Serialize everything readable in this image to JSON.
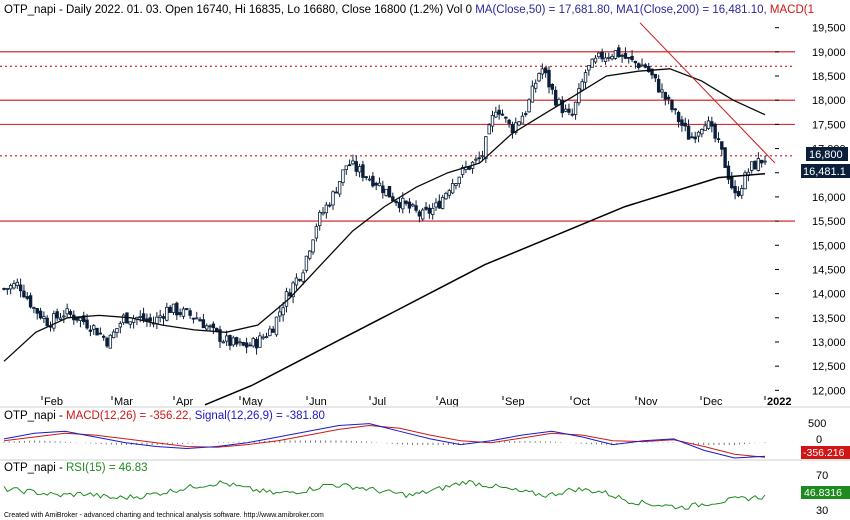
{
  "colors": {
    "background": "#ffffff",
    "candle": "#0b1f3a",
    "ma50": "#0a0a0a",
    "ma200": "#000000",
    "hline": "#d11414",
    "trendline": "#d11414",
    "macd": "#1a1acc",
    "signal": "#cc1a1a",
    "rsi": "#1f8a1f",
    "separator": "#cfcfcf",
    "axis_text": "#000000",
    "badge_last": "#0b1f3a",
    "badge_ma": "#0b1f3a",
    "badge_macd": "#d11414",
    "badge_rsi": "#1f8a1f"
  },
  "main": {
    "header": {
      "prefix": "OTP_napi - Daily 2022. 01. 03. Open 16740, Hi 16835, Lo 16680, Close 16800 (1.2%) Vol 0 ",
      "ma_part": "MA(Close,50) = 17,681.80, MA1(Close,200) = 16,481.10, ",
      "macd_part": "MACD(1"
    },
    "y_ticks": [
      "19,500",
      "19,000",
      "18,500",
      "18,000",
      "17,500",
      "17,000",
      "16,500",
      "16,000",
      "15,500",
      "15,000",
      "14,500",
      "14,000",
      "13,500",
      "13,000",
      "12,500",
      "12,000"
    ],
    "x_labels": [
      "Feb",
      "Mar",
      "Apr",
      "May",
      "Jun",
      "Jul",
      "Aug",
      "Sep",
      "Oct",
      "Nov",
      "Dec",
      "2022"
    ],
    "badge_last": "16,800",
    "badge_ma": "16,481.1"
  },
  "macd_panel": {
    "title_prefix": "OTP_napi - ",
    "title_macd": "MACD(12,26) = -356.22, ",
    "title_signal": "Signal(12,26,9) = -381.80",
    "y_ticks": [
      "500",
      "0"
    ],
    "badge": "-356.216"
  },
  "rsi_panel": {
    "title_prefix": "OTP_napi - ",
    "title_rsi": "RSI(15) = 46.83",
    "y_ticks": [
      "70",
      "30"
    ],
    "badge": "46.8316"
  },
  "footer": "Created with AmiBroker - advanced charting and technical analysis software. http://www.amibroker.com",
  "chart_data": [
    {
      "type": "candlestick",
      "title": "OTP_napi - Daily",
      "ylim": [
        11800,
        19700
      ],
      "x": [
        "Feb",
        "Mar",
        "Apr",
        "May",
        "Jun",
        "Jul",
        "Aug",
        "Sep",
        "Oct",
        "Nov",
        "Dec",
        "2022"
      ],
      "last_bar": {
        "date": "2022. 01. 03.",
        "open": 16740,
        "high": 16835,
        "low": 16680,
        "close": 16800,
        "change_pct": 1.2
      },
      "close_path": [
        14100,
        14200,
        13700,
        13400,
        13600,
        13500,
        13300,
        13000,
        13500,
        13500,
        13400,
        13700,
        13600,
        13500,
        13200,
        13000,
        12900,
        13000,
        13300,
        14000,
        14500,
        15500,
        16000,
        16700,
        16500,
        16300,
        16000,
        15800,
        15600,
        15800,
        16300,
        16600,
        16800,
        17900,
        17400,
        17800,
        18700,
        18000,
        17600,
        18600,
        18900,
        19000,
        18800,
        18700,
        18200,
        17700,
        17200,
        17600,
        17000,
        16000,
        16600,
        16800
      ],
      "ma50_path": [
        12600,
        13200,
        13500,
        13550,
        13500,
        13350,
        13250,
        13200,
        13350,
        13900,
        14600,
        15300,
        15800,
        16200,
        16500,
        16700,
        17300,
        17700,
        18100,
        18500,
        18600,
        18650,
        18400,
        18000,
        17700
      ],
      "ma200_path": [
        11700,
        12100,
        12600,
        13100,
        13600,
        14100,
        14600,
        15000,
        15400,
        15800,
        16100,
        16400,
        16481
      ],
      "horizontal_levels": [
        19000,
        18700,
        18000,
        17500,
        16850,
        15500
      ],
      "trendline": [
        19600,
        16700
      ],
      "ma50_last": 17681.8,
      "ma200_last": 16481.1
    },
    {
      "type": "line",
      "title": "MACD(12,26)",
      "ylim": [
        -400,
        700
      ],
      "series": [
        {
          "name": "MACD(12,26)",
          "last": -356.22,
          "values": [
            100,
            250,
            300,
            150,
            0,
            -100,
            -150,
            -100,
            0,
            150,
            300,
            450,
            500,
            300,
            100,
            -50,
            50,
            200,
            300,
            150,
            -50,
            50,
            100,
            -200,
            -400,
            -356
          ]
        },
        {
          "name": "Signal(12,26,9)",
          "last": -381.8,
          "values": [
            50,
            150,
            250,
            200,
            100,
            0,
            -100,
            -120,
            -50,
            50,
            200,
            350,
            450,
            380,
            200,
            50,
            0,
            120,
            250,
            200,
            50,
            30,
            80,
            -100,
            -300,
            -382
          ]
        }
      ]
    },
    {
      "type": "line",
      "title": "RSI(15)",
      "ylim": [
        30,
        80
      ],
      "series": [
        {
          "name": "RSI(15)",
          "last": 46.83,
          "values": [
            55,
            52,
            48,
            50,
            45,
            47,
            52,
            58,
            62,
            55,
            50,
            53,
            60,
            57,
            52,
            48,
            55,
            63,
            58,
            52,
            48,
            55,
            52,
            42,
            38,
            35,
            40,
            44,
            46.83
          ]
        }
      ]
    }
  ]
}
